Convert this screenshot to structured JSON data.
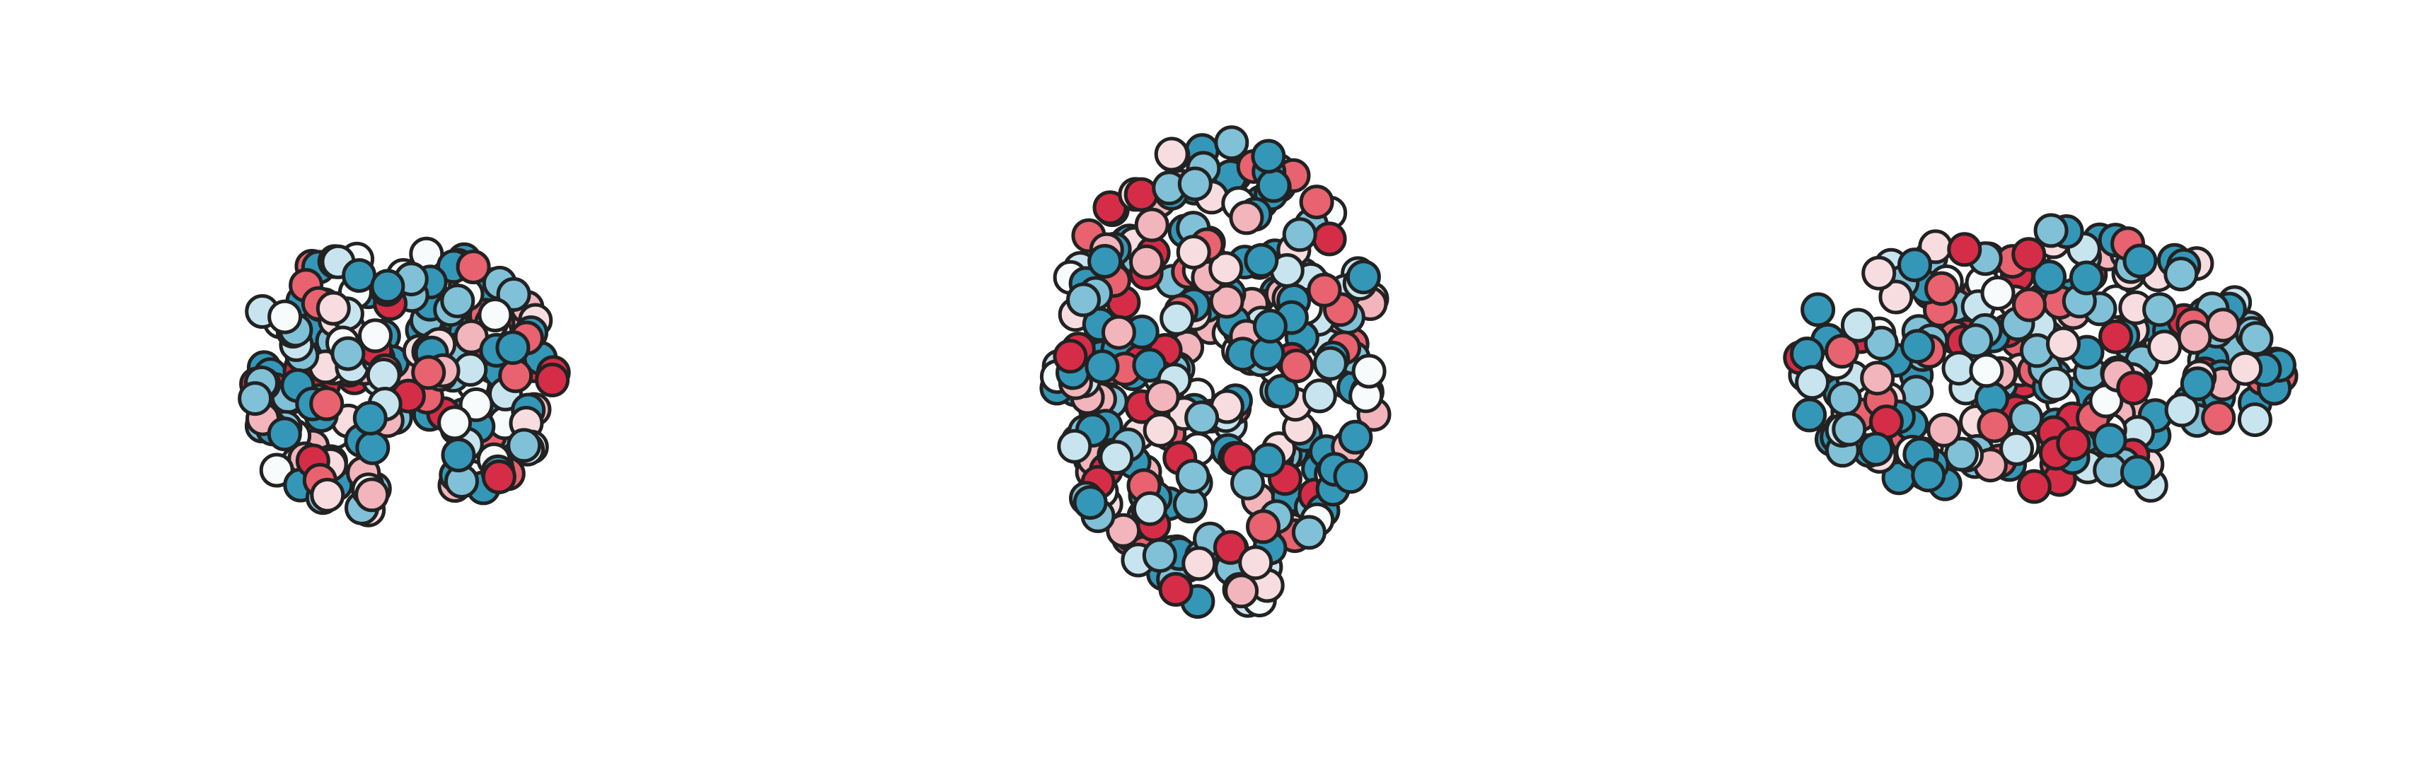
{
  "node_palette": [
    "#3497b8",
    "#3497b8",
    "#3497b8",
    "#80c1d8",
    "#80c1d8",
    "#c8e5ef",
    "#f8fbfc",
    "#f7dde0",
    "#f2b5bc",
    "#e8636f",
    "#d52d47"
  ],
  "node_stroke": "#222222"
}
